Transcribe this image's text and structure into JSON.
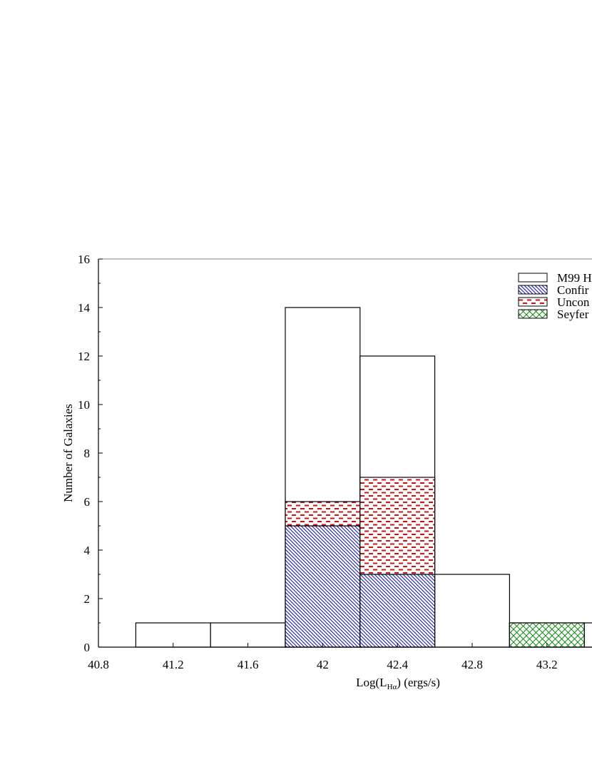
{
  "chart_data": {
    "type": "bar",
    "ylabel": "Number of Galaxies",
    "xlabel": {
      "prefix": "Log(L",
      "subscript": "Hα",
      "suffix": ") (ergs/s)"
    },
    "xlim": [
      40.8,
      43.6
    ],
    "ylim": [
      0,
      16
    ],
    "x_ticks": [
      "40.8",
      "41.2",
      "41.6",
      "42",
      "42.4",
      "42.8",
      "43.2"
    ],
    "y_ticks": [
      "0",
      "2",
      "4",
      "6",
      "8",
      "10",
      "12",
      "14",
      "16"
    ],
    "grid": false,
    "legend_position": "top-right",
    "colors": {
      "total": "#000000",
      "confirmed": "#1a1aa6",
      "unconfirmed": "#cc1111",
      "seyfert": "#118811"
    },
    "series": [
      {
        "name": "M99 H",
        "pattern": "none",
        "bins": [
          {
            "x0": 41.0,
            "x1": 41.4,
            "value": 1
          },
          {
            "x0": 41.4,
            "x1": 41.8,
            "value": 1
          },
          {
            "x0": 41.8,
            "x1": 42.2,
            "value": 14
          },
          {
            "x0": 42.2,
            "x1": 42.6,
            "value": 12
          },
          {
            "x0": 42.6,
            "x1": 43.0,
            "value": 3
          },
          {
            "x0": 43.0,
            "x1": 43.4,
            "value": 1
          },
          {
            "x0": 43.4,
            "x1": 43.8,
            "value": 1
          }
        ]
      },
      {
        "name": "Confir",
        "pattern": "diagonal",
        "bins": [
          {
            "x0": 41.8,
            "x1": 42.2,
            "value": 5
          },
          {
            "x0": 42.2,
            "x1": 42.6,
            "value": 3
          }
        ]
      },
      {
        "name": "Uncon",
        "pattern": "dashes",
        "stacked_on": "Confir",
        "bins": [
          {
            "x0": 41.8,
            "x1": 42.2,
            "value": 1
          },
          {
            "x0": 42.2,
            "x1": 42.6,
            "value": 4
          }
        ]
      },
      {
        "name": "Seyfer",
        "pattern": "crosshatch",
        "bins": [
          {
            "x0": 43.0,
            "x1": 43.4,
            "value": 1
          }
        ]
      }
    ]
  }
}
